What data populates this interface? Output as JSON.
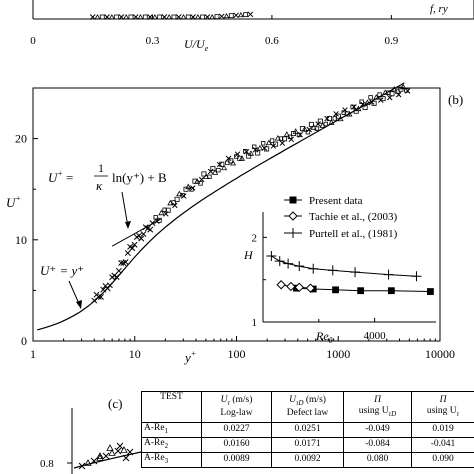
{
  "panel_a": {
    "x_ticks": [
      "0",
      "0.3",
      "0.6",
      "0.9"
    ],
    "x_label": "U/U",
    "x_label_sub": "e",
    "legend_fragment": "f, ry",
    "chart_data": {
      "type": "scatter",
      "x_ticks": [
        0,
        0.3,
        0.6,
        0.9
      ],
      "xlabel": "U/Ue",
      "xlim": [
        0,
        1.1
      ]
    }
  },
  "panel_b": {
    "panel_label": "(b)",
    "y_label": "U",
    "y_label_sup": "+",
    "x_label": "y",
    "x_label_sup": "+",
    "y_ticks": [
      "0",
      "10",
      "20"
    ],
    "x_ticks": [
      "1",
      "10",
      "100",
      "1000",
      "10000"
    ],
    "eq_log_lhs": "U",
    "eq_log_rhs": "ln(y⁺) + B",
    "eq_log_frac_num": "1",
    "eq_log_frac_den": "κ",
    "eq_lin": "U⁺ = y⁺",
    "chart_data": {
      "type": "scatter",
      "xscale": "log",
      "xlim": [
        1,
        10000
      ],
      "ylim": [
        0,
        25
      ],
      "xlabel": "y+",
      "ylabel": "U+",
      "series": [
        {
          "name": "",
          "x": [
            4,
            5,
            6,
            7,
            8,
            9,
            10,
            12,
            15,
            20,
            30,
            50,
            80,
            100,
            200,
            400,
            700,
            1000,
            1500,
            2000,
            3000,
            4000,
            5000
          ],
          "y": [
            4,
            5,
            6,
            7,
            8,
            9,
            9.8,
            10.6,
            11.6,
            12.8,
            14.6,
            16.3,
            17.6,
            18.1,
            19.3,
            20.5,
            21.5,
            22.2,
            23.0,
            23.6,
            24.3,
            24.7,
            25.0
          ]
        }
      ]
    }
  },
  "inset": {
    "y_label": "H",
    "x_label": "Re",
    "x_label_sub": "θ",
    "y_ticks": [
      "1",
      "2"
    ],
    "x_ticks": [
      "0",
      "4000"
    ],
    "legend": [
      "Present data",
      "Tachie et al., (2003)",
      "Purtell et al., (1981)"
    ],
    "chart_data": {
      "type": "line",
      "xlim": [
        0,
        6200
      ],
      "ylim": [
        1,
        2.3
      ],
      "xlabel": "Reθ",
      "ylabel": "H",
      "series": [
        {
          "name": "Present data",
          "x": [
            1200,
            1800,
            2600,
            3500,
            4600,
            6000
          ],
          "y": [
            1.4,
            1.39,
            1.38,
            1.37,
            1.37,
            1.36
          ]
        },
        {
          "name": "Tachie et al., (2003)",
          "x": [
            650,
            1000,
            1300,
            1700
          ],
          "y": [
            1.44,
            1.42,
            1.41,
            1.4
          ]
        },
        {
          "name": "Purtell et al., (1981)",
          "x": [
            300,
            600,
            900,
            1300,
            1800,
            2500,
            3300,
            4500,
            5500
          ],
          "y": [
            1.78,
            1.72,
            1.69,
            1.66,
            1.63,
            1.61,
            1.59,
            1.56,
            1.54
          ]
        }
      ]
    }
  },
  "panel_c": {
    "panel_label": "(c)",
    "y_tick": "0.8",
    "table": {
      "headers": [
        [
          "TEST",
          ""
        ],
        [
          "U",
          "τ",
          " (m/s)",
          "Log-law"
        ],
        [
          "U",
          "τD",
          " (m/s)",
          "Defect law"
        ],
        [
          "Π",
          "",
          "",
          "using U",
          "τD"
        ],
        [
          "Π",
          "",
          "",
          "using U",
          "τ"
        ]
      ],
      "rows": [
        [
          "A-Re",
          "1",
          "0.0227",
          "0.0251",
          "-0.049",
          "0.019"
        ],
        [
          "A-Re",
          "2",
          "0.0160",
          "0.0171",
          "-0.084",
          "-0.041"
        ],
        [
          "A-Re",
          "3",
          "0.0089",
          "0.0092",
          "0.080",
          "0.090"
        ]
      ]
    }
  },
  "colors": {
    "ink": "#000000",
    "background": "#ffffff"
  }
}
